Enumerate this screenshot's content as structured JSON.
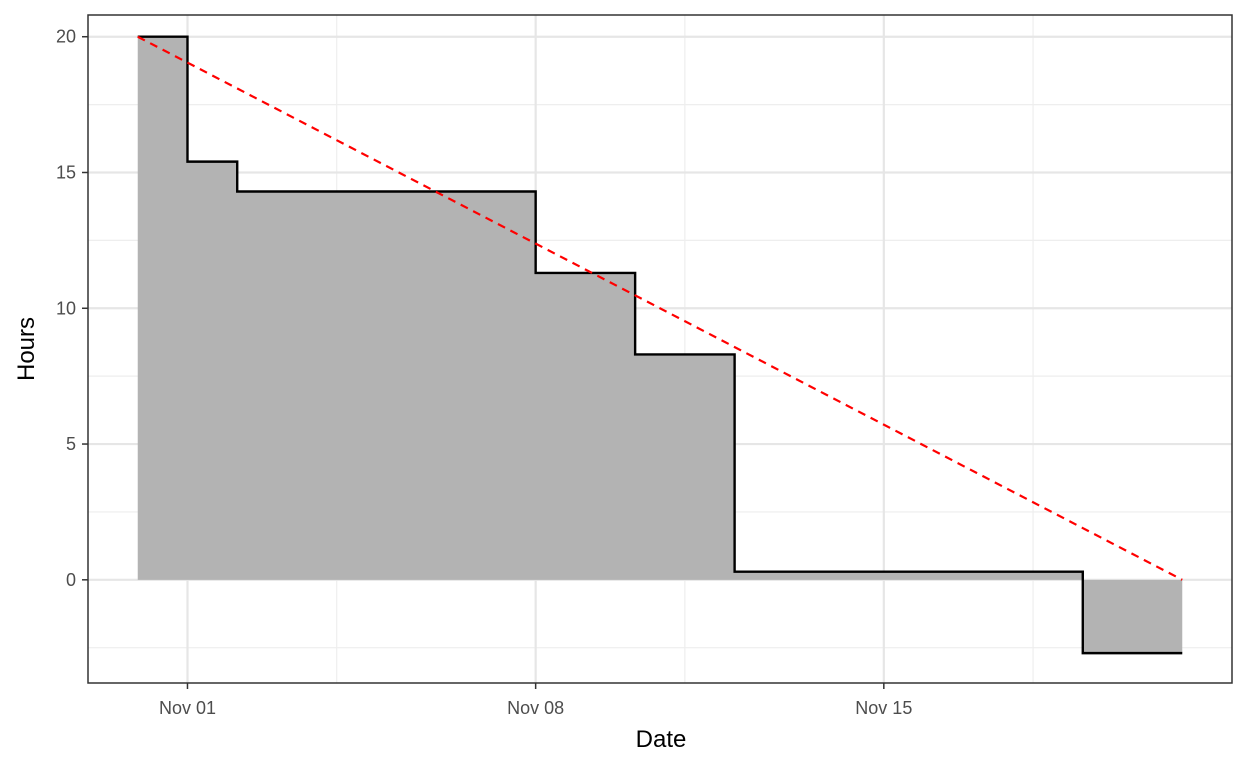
{
  "chart_data": {
    "type": "area",
    "title": "",
    "xlabel": "Date",
    "ylabel": "Hours",
    "x_axis": {
      "kind": "date",
      "range": [
        "2021-10-30",
        "2021-11-22"
      ],
      "ticks": [
        {
          "date": "2021-11-01",
          "label": "Nov 01"
        },
        {
          "date": "2021-11-08",
          "label": "Nov 08"
        },
        {
          "date": "2021-11-15",
          "label": "Nov 15"
        }
      ],
      "minor_ticks": [
        "2021-11-04",
        "2021-11-11",
        "2021-11-18"
      ]
    },
    "y_axis": {
      "range": [
        -3.8,
        20.8
      ],
      "ticks": [
        0,
        5,
        10,
        15,
        20
      ],
      "minor_ticks": [
        -2.5,
        2.5,
        7.5,
        12.5,
        17.5
      ]
    },
    "grid": true,
    "series": [
      {
        "style": "step",
        "fill_to_zero": true,
        "fill_color": "#b3b3b3",
        "line_color": "#000000",
        "points": [
          {
            "x": "2021-10-31",
            "y": 20
          },
          {
            "x": "2021-11-01",
            "y": 15.4
          },
          {
            "x": "2021-11-02",
            "y": 14.3
          },
          {
            "x": "2021-11-08",
            "y": 11.3
          },
          {
            "x": "2021-11-10",
            "y": 8.3
          },
          {
            "x": "2021-11-12",
            "y": 0.3
          },
          {
            "x": "2021-11-19",
            "y": -2.7
          },
          {
            "x": "2021-11-21",
            "y": -2.7
          }
        ]
      },
      {
        "style": "dashed-line",
        "line_color": "#ff0000",
        "points": [
          {
            "x": "2021-10-31",
            "y": 20
          },
          {
            "x": "2021-11-21",
            "y": 0
          }
        ]
      }
    ]
  }
}
